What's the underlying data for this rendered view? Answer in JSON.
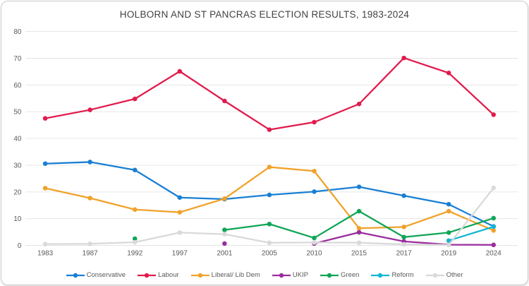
{
  "title": "HOLBORN AND ST PANCRAS ELECTION RESULTS, 1983-2024",
  "colors": {
    "background": "#ffffff",
    "card_border": "#c9c9c9",
    "gridline": "#e4e4e4",
    "axis_text": "#595959",
    "title_text": "#414141"
  },
  "chart_data": {
    "type": "line",
    "title": "HOLBORN AND ST PANCRAS ELECTION RESULTS, 1983-2024",
    "xlabel": "",
    "ylabel": "",
    "ylim": [
      0,
      80
    ],
    "yticks": [
      0,
      10,
      20,
      30,
      40,
      50,
      60,
      70,
      80
    ],
    "grid": "horizontal",
    "legend_position": "bottom",
    "categories": [
      "1983",
      "1987",
      "1992",
      "1997",
      "2001",
      "2005",
      "2010",
      "2015",
      "2017",
      "2019",
      "2024"
    ],
    "series": [
      {
        "name": "Conservative",
        "color": "#1a7fd4",
        "values": [
          30.6,
          31.2,
          28.2,
          17.9,
          17.3,
          18.9,
          20.1,
          21.9,
          18.6,
          15.4,
          7.1
        ]
      },
      {
        "name": "Labour",
        "color": "#e11b4c",
        "values": [
          47.5,
          50.7,
          54.8,
          65.1,
          54.0,
          43.3,
          46.1,
          52.9,
          70.1,
          64.5,
          48.9
        ]
      },
      {
        "name": "Liberal/ Lib Dem",
        "color": "#f0a229",
        "values": [
          21.4,
          17.7,
          13.4,
          12.4,
          17.5,
          29.3,
          27.8,
          6.4,
          6.9,
          12.8,
          5.6
        ]
      },
      {
        "name": "UKIP",
        "color": "#9b2d9e",
        "values": [
          null,
          null,
          null,
          null,
          0.7,
          null,
          0.7,
          4.9,
          1.5,
          0.3,
          0.2
        ]
      },
      {
        "name": "Green",
        "color": "#0fa556",
        "values": [
          null,
          null,
          2.5,
          null,
          5.8,
          8.0,
          2.8,
          12.8,
          3.1,
          4.8,
          10.2
        ]
      },
      {
        "name": "Reform",
        "color": "#12b6d4",
        "values": [
          null,
          null,
          null,
          null,
          null,
          null,
          null,
          null,
          null,
          1.8,
          7.0
        ]
      },
      {
        "name": "Other",
        "color": "#d9d9d9",
        "values": [
          0.5,
          0.6,
          1.2,
          4.8,
          4.2,
          1.0,
          1.1,
          1.0,
          0.4,
          0.2,
          21.5
        ]
      }
    ]
  }
}
